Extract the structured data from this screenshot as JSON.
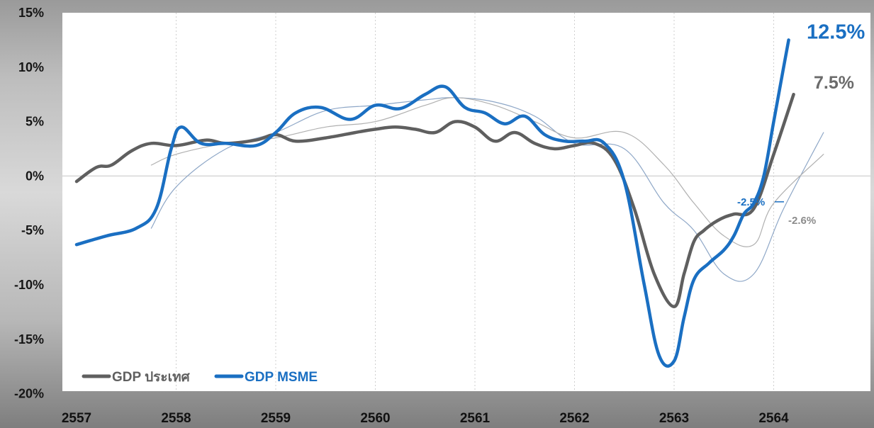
{
  "chart_data": {
    "type": "line",
    "title": "",
    "xlabel": "",
    "ylabel": "",
    "ylim": [
      -20,
      15
    ],
    "y_ticks": [
      "15%",
      "10%",
      "5%",
      "0%",
      "-5%",
      "-10%",
      "-15%",
      "-20%"
    ],
    "y_tick_values": [
      15,
      10,
      5,
      0,
      -5,
      -10,
      -15,
      -20
    ],
    "categories": [
      "2557",
      "2558",
      "2559",
      "2560",
      "2561",
      "2562",
      "2563",
      "2564"
    ],
    "grid": "vertical dashed lines at each year; zero line",
    "legend_position": "bottom-left",
    "series": [
      {
        "name": "GDP ประเทศ",
        "color": "#5f5f5f",
        "x": [
          0.0,
          0.2,
          0.35,
          0.55,
          0.75,
          1.0,
          1.3,
          1.5,
          1.8,
          2.0,
          2.2,
          2.5,
          2.8,
          3.0,
          3.2,
          3.4,
          3.6,
          3.8,
          4.0,
          4.2,
          4.4,
          4.6,
          4.8,
          5.0,
          5.2,
          5.4,
          5.6,
          5.8,
          6.0,
          6.1,
          6.2,
          6.3,
          6.4,
          6.5,
          6.6,
          6.8,
          7.0,
          7.2
        ],
        "values": [
          -0.5,
          0.8,
          1.0,
          2.3,
          3.0,
          2.8,
          3.3,
          3.0,
          3.3,
          3.8,
          3.2,
          3.5,
          4.0,
          4.3,
          4.5,
          4.3,
          4.0,
          5.0,
          4.5,
          3.2,
          4.0,
          3.0,
          2.5,
          2.8,
          3.0,
          1.5,
          -3.0,
          -9.0,
          -12.0,
          -9.0,
          -6.0,
          -5.0,
          -4.3,
          -3.8,
          -3.5,
          -3.0,
          2.0,
          7.5
        ]
      },
      {
        "name": "GDP MSME",
        "color": "#1a6fc2",
        "x": [
          0.0,
          0.3,
          0.6,
          0.8,
          0.95,
          1.05,
          1.25,
          1.5,
          1.8,
          2.0,
          2.2,
          2.45,
          2.75,
          3.0,
          3.25,
          3.5,
          3.7,
          3.9,
          4.1,
          4.3,
          4.5,
          4.7,
          4.9,
          5.1,
          5.3,
          5.5,
          5.7,
          5.85,
          6.0,
          6.1,
          6.2,
          6.35,
          6.5,
          6.6,
          6.7,
          6.8,
          6.9,
          7.0,
          7.1,
          7.15
        ],
        "values": [
          -6.3,
          -5.5,
          -4.8,
          -3.0,
          2.5,
          4.5,
          3.0,
          3.0,
          2.8,
          4.0,
          5.8,
          6.3,
          5.2,
          6.5,
          6.2,
          7.5,
          8.2,
          6.3,
          5.8,
          4.8,
          5.5,
          3.8,
          3.2,
          3.2,
          3.0,
          -0.5,
          -10.0,
          -16.5,
          -17.0,
          -13.0,
          -9.5,
          -8.0,
          -6.8,
          -5.5,
          -3.5,
          -2.5,
          0.0,
          5.0,
          10.0,
          12.5
        ]
      },
      {
        "name": "",
        "color": "#8ea7c7",
        "x": [
          0.75,
          1.0,
          1.5,
          2.0,
          2.5,
          3.0,
          3.5,
          3.8,
          4.2,
          4.6,
          5.0,
          5.5,
          5.9,
          6.2,
          6.5,
          6.8,
          7.1,
          7.5
        ],
        "values": [
          -4.8,
          -1.0,
          2.5,
          4.0,
          6.0,
          6.5,
          7.0,
          7.2,
          6.8,
          5.5,
          3.0,
          2.5,
          -2.5,
          -5.0,
          -9.0,
          -9.0,
          -3.0,
          4.0
        ]
      },
      {
        "name": "",
        "color": "#b0b0b0",
        "x": [
          0.75,
          1.0,
          1.5,
          2.0,
          2.5,
          3.0,
          3.5,
          3.8,
          4.2,
          4.6,
          5.0,
          5.5,
          5.9,
          6.2,
          6.5,
          6.8,
          7.0,
          7.5
        ],
        "values": [
          1.0,
          2.0,
          3.0,
          3.5,
          4.5,
          5.0,
          6.5,
          7.2,
          6.5,
          5.0,
          3.5,
          4.0,
          1.0,
          -2.5,
          -5.5,
          -6.3,
          -2.5,
          2.0
        ]
      }
    ],
    "annotations": [
      {
        "text": "12.5%",
        "series": "GDP MSME",
        "color": "#1a6fc2"
      },
      {
        "text": "7.5%",
        "series": "GDP ประเทศ",
        "color": "#6b6b6b"
      },
      {
        "text": "-2.5%",
        "series": "GDP MSME",
        "color": "#1a6fc2"
      },
      {
        "text": "-2.6%",
        "series": "GDP ประเทศ",
        "color": "#8c8c8c"
      }
    ],
    "legend": [
      {
        "label": "GDP ประเทศ",
        "color": "#5f5f5f"
      },
      {
        "label": "GDP MSME",
        "color": "#1a6fc2"
      }
    ]
  }
}
